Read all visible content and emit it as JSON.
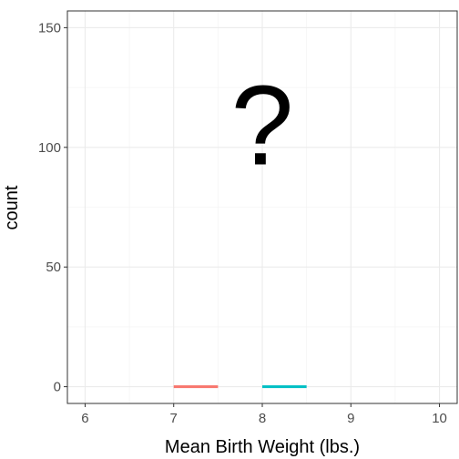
{
  "chart_data": {
    "type": "bar",
    "xlabel": "Mean Birth Weight (lbs.)",
    "ylabel": "count",
    "xlim": [
      5.8,
      10.2
    ],
    "ylim": [
      -7,
      157
    ],
    "x_ticks": [
      6,
      7,
      8,
      9,
      10
    ],
    "y_ticks": [
      0,
      50,
      100,
      150
    ],
    "x_tick_labels": [
      "6",
      "7",
      "8",
      "9",
      "10"
    ],
    "y_tick_labels": [
      "0",
      "50",
      "100",
      "150"
    ],
    "grid": true,
    "legend": "none",
    "bars": [
      {
        "x_start": 7.0,
        "x_end": 7.5,
        "value": 0,
        "color": "#F8766D"
      },
      {
        "x_start": 8.0,
        "x_end": 8.5,
        "value": 0,
        "color": "#00BFC4"
      }
    ],
    "annotations": [
      {
        "text": "?",
        "x": 8.0,
        "y": 110
      }
    ]
  }
}
